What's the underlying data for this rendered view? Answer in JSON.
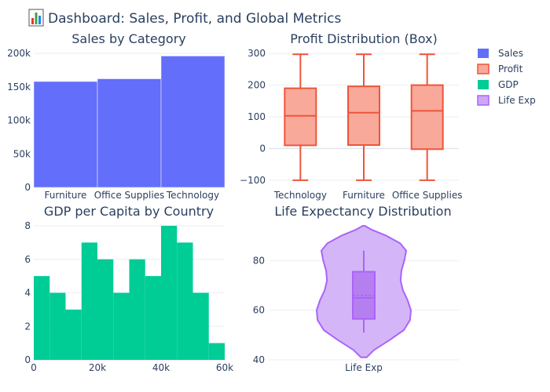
{
  "title": "Dashboard: Sales, Profit, and Global Metrics",
  "title_icon": "bar-chart-icon",
  "colors": {
    "sales": "#636efa",
    "profit": "#ef553b",
    "profit_fill": "#f8a99a",
    "gdp": "#00cc96",
    "life": "#ab63fa",
    "life_fill": "#cca9f7",
    "grid": "#ebeef3",
    "text": "#2a3f5f"
  },
  "legend": [
    {
      "label": "Sales",
      "color": "#636efa",
      "style": "solid"
    },
    {
      "label": "Profit",
      "color": "#ef553b",
      "style": "box"
    },
    {
      "label": "GDP",
      "color": "#00cc96",
      "style": "solid"
    },
    {
      "label": "Life Exp",
      "color": "#ab63fa",
      "style": "violin"
    }
  ],
  "chart_data": [
    {
      "type": "bar",
      "title": "Sales by Category",
      "categories": [
        "Furniture",
        "Office Supplies",
        "Technology"
      ],
      "values": [
        158000,
        162000,
        196000
      ],
      "ylim": [
        0,
        200000
      ],
      "yticks": [
        0,
        50000,
        100000,
        150000,
        200000
      ],
      "ytick_labels": [
        "0",
        "50k",
        "100k",
        "150k",
        "200k"
      ],
      "grid": true
    },
    {
      "type": "box",
      "title": "Profit Distribution (Box)",
      "categories": [
        "Technology",
        "Furniture",
        "Office Supplies"
      ],
      "boxes": [
        {
          "min": -100,
          "q1": 10,
          "median": 103,
          "q3": 190,
          "max": 297
        },
        {
          "min": -100,
          "q1": 11,
          "median": 113,
          "q3": 196,
          "max": 297
        },
        {
          "min": -100,
          "q1": -2,
          "median": 119,
          "q3": 200,
          "max": 297
        }
      ],
      "ylim": [
        -120,
        320
      ],
      "yticks": [
        -100,
        0,
        100,
        200,
        300
      ],
      "ytick_labels": [
        "−100",
        "0",
        "100",
        "200",
        "300"
      ],
      "grid": true
    },
    {
      "type": "histogram",
      "title": "GDP per Capita by Country",
      "bin_width": 5000,
      "x_start": 0,
      "counts": [
        5,
        4,
        3,
        7,
        6,
        4,
        6,
        5,
        8,
        7,
        4,
        1
      ],
      "xlim": [
        0,
        60000
      ],
      "xticks": [
        0,
        20000,
        40000,
        60000
      ],
      "xtick_labels": [
        "0",
        "20k",
        "40k",
        "60k"
      ],
      "ylim": [
        0,
        8
      ],
      "yticks": [
        0,
        2,
        4,
        6,
        8
      ],
      "ytick_labels": [
        "0",
        "2",
        "4",
        "6",
        "8"
      ],
      "grid": true
    },
    {
      "type": "violin",
      "title": "Life Expectancy Distribution",
      "category": "Life Exp",
      "ylim": [
        40,
        94
      ],
      "yticks": [
        40,
        60,
        80
      ],
      "ytick_labels": [
        "40",
        "60",
        "80"
      ],
      "box": {
        "lower_whisker": 51,
        "q1": 56.5,
        "median": 65,
        "mean": 66,
        "q3": 75.5,
        "upper_whisker": 84
      },
      "density": [
        [
          41,
          0.06
        ],
        [
          44,
          0.22
        ],
        [
          48,
          0.55
        ],
        [
          52,
          0.85
        ],
        [
          56,
          0.98
        ],
        [
          60,
          1.0
        ],
        [
          64,
          0.93
        ],
        [
          68,
          0.83
        ],
        [
          72,
          0.78
        ],
        [
          76,
          0.8
        ],
        [
          80,
          0.86
        ],
        [
          84,
          0.9
        ],
        [
          87,
          0.77
        ],
        [
          90,
          0.48
        ],
        [
          92.5,
          0.16
        ],
        [
          94,
          0.02
        ]
      ],
      "grid": true
    }
  ]
}
